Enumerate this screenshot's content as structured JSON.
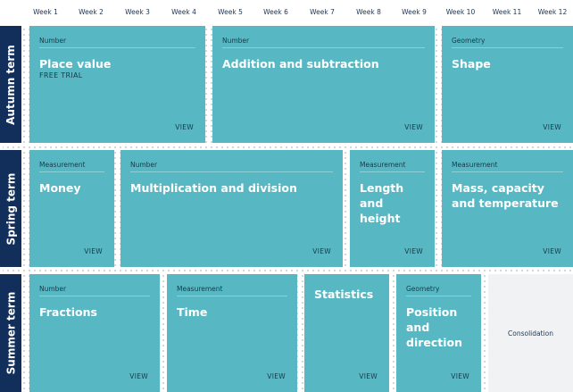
{
  "weeks": [
    "Week 1",
    "Week 2",
    "Week 3",
    "Week 4",
    "Week 5",
    "Week 6",
    "Week 7",
    "Week 8",
    "Week 9",
    "Week 10",
    "Week 11",
    "Week 12"
  ],
  "terms": {
    "autumn": "Autumn term",
    "spring": "Spring term",
    "summer": "Summer term"
  },
  "view_label": "VIEW",
  "autumn": [
    {
      "category": "Number",
      "title": "Place value",
      "badge": "FREE TRIAL"
    },
    {
      "category": "Number",
      "title": "Addition and subtraction"
    },
    {
      "category": "Geometry",
      "title": "Shape"
    }
  ],
  "spring": [
    {
      "category": "Measurement",
      "title": "Money"
    },
    {
      "category": "Number",
      "title": "Multiplication and division"
    },
    {
      "category": "Measurement",
      "title": "Length and height"
    },
    {
      "category": "Measurement",
      "title": "Mass, capacity and temperature"
    }
  ],
  "summer": [
    {
      "category": "Number",
      "title": "Fractions"
    },
    {
      "category": "Measurement",
      "title": "Time"
    },
    {
      "title": "Statistics"
    },
    {
      "category": "Geometry",
      "title": "Position and direction"
    },
    {
      "consolidation": "Consolidation"
    }
  ],
  "colors": {
    "card": "#57b8c3",
    "term": "#112f5a",
    "consolidation": "#f0f2f4"
  }
}
